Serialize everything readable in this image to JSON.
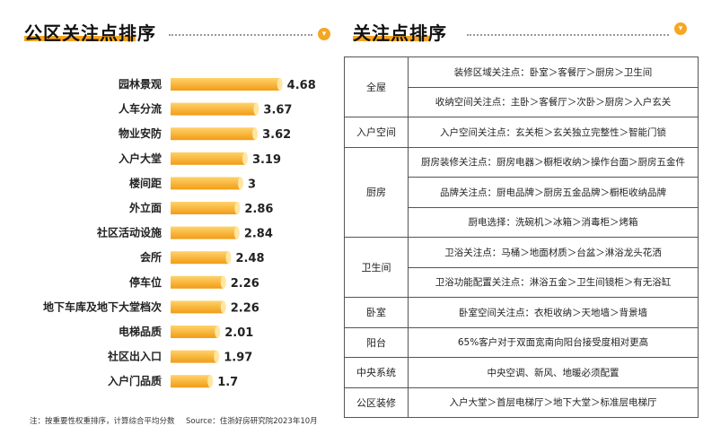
{
  "left_title": "公区关注点排序",
  "right_title": "关注点排序",
  "icons": {
    "badge": "chevron-down-icon"
  },
  "colors": {
    "accent": "#f5a623",
    "bar_light": "#ffd36b",
    "bar_dark": "#f29c16"
  },
  "chart_data": {
    "type": "bar",
    "orientation": "horizontal",
    "categories": [
      "园林景观",
      "人车分流",
      "物业安防",
      "入户大堂",
      "楼间距",
      "外立面",
      "社区活动设施",
      "会所",
      "停车位",
      "地下车库及地下大堂档次",
      "电梯品质",
      "社区出入口",
      "入户门品质"
    ],
    "values": [
      4.68,
      3.67,
      3.62,
      3.19,
      3,
      2.86,
      2.84,
      2.48,
      2.26,
      2.26,
      2.01,
      1.97,
      1.7
    ],
    "value_labels": [
      "4.68",
      "3.67",
      "3.62",
      "3.19",
      "3",
      "2.86",
      "2.84",
      "2.48",
      "2.26",
      "2.26",
      "2.01",
      "1.97",
      "1.7"
    ],
    "xlim": [
      0,
      5
    ],
    "grid": false,
    "legend": "none"
  },
  "footnote": "注：按重要性权重排序，计算综合平均分数",
  "source": "Source：住浙好房研究院2023年10月",
  "table": {
    "groups": [
      {
        "category": "全屋",
        "rows": [
          "装修区域关注点：卧室＞客餐厅＞厨房＞卫生间",
          "收纳空间关注点：主卧＞客餐厅＞次卧＞厨房＞入户玄关"
        ]
      },
      {
        "category": "入户空间",
        "rows": [
          "入户空间关注点：玄关柜＞玄关独立完整性＞智能门锁"
        ]
      },
      {
        "category": "厨房",
        "rows": [
          "厨房装修关注点：厨房电器＞橱柜收纳＞操作台面＞厨房五金件",
          "品牌关注点：厨电品牌＞厨房五金品牌＞橱柜收纳品牌",
          "厨电选择：洗碗机＞冰箱＞消毒柜＞烤箱"
        ]
      },
      {
        "category": "卫生间",
        "rows": [
          "卫浴关注点：马桶＞地面材质＞台盆＞淋浴龙头花洒",
          "卫浴功能配置关注点：淋浴五金＞卫生间镜柜＞有无浴缸"
        ]
      },
      {
        "category": "卧室",
        "rows": [
          "卧室空间关注点：衣柜收纳＞天地墙＞背景墙"
        ]
      },
      {
        "category": "阳台",
        "rows": [
          "65%客户对于双面宽南向阳台接受度相对更高"
        ]
      },
      {
        "category": "中央系统",
        "rows": [
          "中央空调、新风、地暖必须配置"
        ]
      },
      {
        "category": "公区装修",
        "rows": [
          "入户大堂＞首层电梯厅＞地下大堂＞标准层电梯厅"
        ]
      }
    ]
  }
}
